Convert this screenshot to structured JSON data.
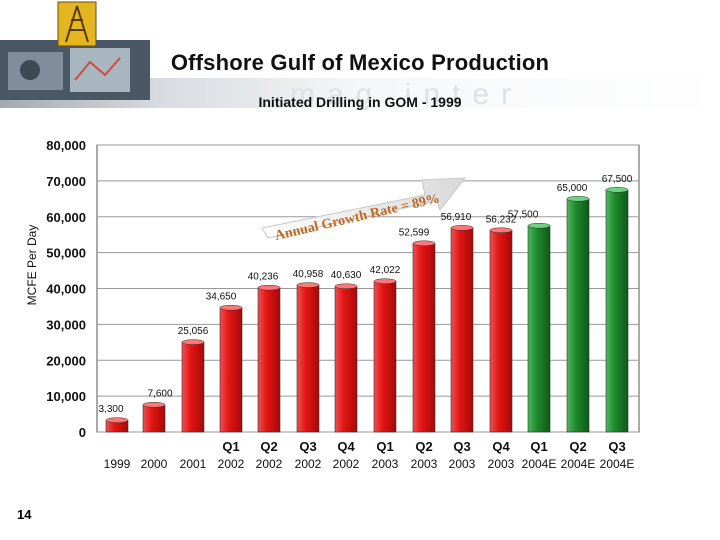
{
  "slide": {
    "title": "Offshore Gulf of Mexico Production",
    "subtitle": "Initiated Drilling in GOM - 1999",
    "page_number": "14",
    "colors": {
      "actual": "#e81919",
      "estimate": "#1f8a2c",
      "banner": "#c9cfd6"
    }
  },
  "chart_data": {
    "type": "bar",
    "title": "",
    "xlabel": "",
    "ylabel": "MCFE Per Day",
    "ylim": [
      0,
      80000
    ],
    "yticks": [
      "0",
      "10,000",
      "20,000",
      "30,000",
      "40,000",
      "50,000",
      "60,000",
      "70,000",
      "80,000"
    ],
    "grid": true,
    "categories": [
      {
        "quarter": "",
        "year": "1999"
      },
      {
        "quarter": "",
        "year": "2000"
      },
      {
        "quarter": "",
        "year": "2001"
      },
      {
        "quarter": "Q1",
        "year": "2002"
      },
      {
        "quarter": "Q2",
        "year": "2002"
      },
      {
        "quarter": "Q3",
        "year": "2002"
      },
      {
        "quarter": "Q4",
        "year": "2002"
      },
      {
        "quarter": "Q1",
        "year": "2003"
      },
      {
        "quarter": "Q2",
        "year": "2003"
      },
      {
        "quarter": "Q3",
        "year": "2003"
      },
      {
        "quarter": "Q4",
        "year": "2003"
      },
      {
        "quarter": "Q1",
        "year": "2004E"
      },
      {
        "quarter": "Q2",
        "year": "2004E"
      },
      {
        "quarter": "Q3",
        "year": "2004E"
      }
    ],
    "values": [
      3300,
      7600,
      25056,
      34650,
      40236,
      40958,
      40630,
      42022,
      52599,
      56910,
      56232,
      57500,
      65000,
      67500
    ],
    "data_labels": [
      "3,300",
      "7,600",
      "25,056",
      "34,650",
      "40,236",
      "40,958",
      "40,630",
      "42,022",
      "52,599",
      "56,910",
      "56,232",
      "57,500",
      "65,000",
      "67,500"
    ],
    "bar_status": [
      "actual",
      "actual",
      "actual",
      "actual",
      "actual",
      "actual",
      "actual",
      "actual",
      "actual",
      "actual",
      "actual",
      "estimate",
      "estimate",
      "estimate"
    ],
    "annotation": {
      "text": "Annual Growth Rate = 89%"
    }
  }
}
